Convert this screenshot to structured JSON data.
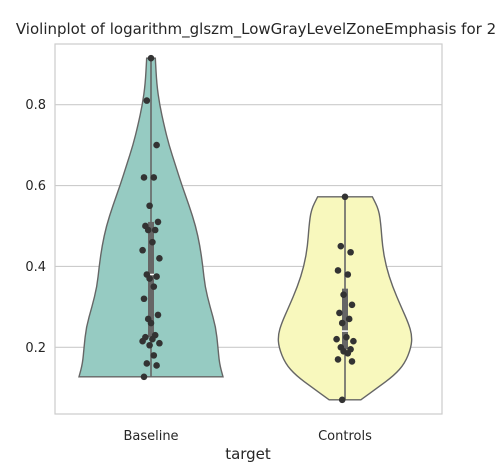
{
  "chart_data": {
    "type": "violin",
    "title": "Violinplot of logarithm_glszm_LowGrayLevelZoneEmphasis for 2",
    "xlabel": "target",
    "ylabel": "",
    "categories": [
      "Baseline",
      "Controls"
    ],
    "yticks": [
      0.2,
      0.4,
      0.6,
      0.8
    ],
    "ylim": [
      0.035,
      0.95
    ],
    "grid": true,
    "colors": {
      "violins": [
        "#96cbc2",
        "#f8f8bd"
      ],
      "outline": "#666666",
      "points": "#333333",
      "grid": "#cccccc"
    },
    "violins": [
      {
        "category": "Baseline",
        "min": 0.127,
        "max": 0.915,
        "q1": 0.225,
        "median": 0.38,
        "q3": 0.51,
        "density_profile": [
          [
            0.127,
            1.0
          ],
          [
            0.16,
            0.95
          ],
          [
            0.2,
            0.93
          ],
          [
            0.25,
            0.9
          ],
          [
            0.3,
            0.82
          ],
          [
            0.35,
            0.75
          ],
          [
            0.4,
            0.72
          ],
          [
            0.45,
            0.68
          ],
          [
            0.5,
            0.62
          ],
          [
            0.55,
            0.53
          ],
          [
            0.6,
            0.43
          ],
          [
            0.65,
            0.34
          ],
          [
            0.7,
            0.25
          ],
          [
            0.75,
            0.18
          ],
          [
            0.8,
            0.12
          ],
          [
            0.85,
            0.08
          ],
          [
            0.915,
            0.06
          ]
        ],
        "points": [
          0.915,
          0.81,
          0.7,
          0.62,
          0.62,
          0.55,
          0.51,
          0.5,
          0.49,
          0.49,
          0.46,
          0.44,
          0.42,
          0.38,
          0.375,
          0.37,
          0.35,
          0.32,
          0.28,
          0.27,
          0.26,
          0.23,
          0.225,
          0.22,
          0.215,
          0.21,
          0.205,
          0.18,
          0.16,
          0.155,
          0.127
        ]
      },
      {
        "category": "Controls",
        "min": 0.07,
        "max": 0.572,
        "q1": 0.195,
        "median": 0.24,
        "q3": 0.345,
        "density_profile": [
          [
            0.07,
            0.22
          ],
          [
            0.1,
            0.45
          ],
          [
            0.13,
            0.68
          ],
          [
            0.16,
            0.83
          ],
          [
            0.2,
            0.92
          ],
          [
            0.23,
            0.93
          ],
          [
            0.26,
            0.88
          ],
          [
            0.3,
            0.78
          ],
          [
            0.35,
            0.66
          ],
          [
            0.4,
            0.57
          ],
          [
            0.45,
            0.52
          ],
          [
            0.5,
            0.5
          ],
          [
            0.54,
            0.47
          ],
          [
            0.572,
            0.38
          ]
        ],
        "points": [
          0.572,
          0.45,
          0.435,
          0.39,
          0.38,
          0.33,
          0.305,
          0.285,
          0.27,
          0.26,
          0.225,
          0.22,
          0.215,
          0.2,
          0.195,
          0.19,
          0.185,
          0.17,
          0.165,
          0.07
        ]
      }
    ]
  }
}
